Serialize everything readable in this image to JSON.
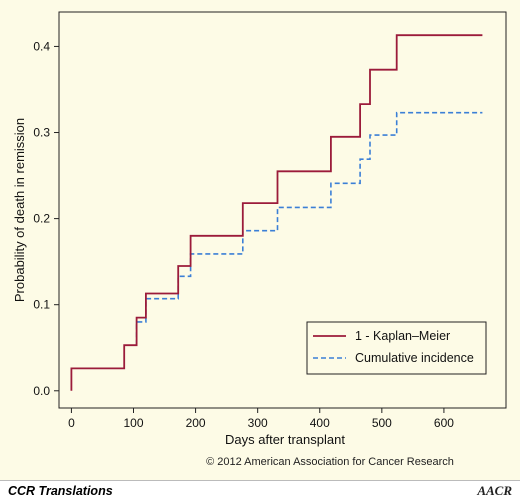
{
  "chart_data": {
    "type": "line",
    "xlabel": "Days after transplant",
    "ylabel": "Probability of death in remission",
    "xlim": [
      -20,
      700
    ],
    "ylim": [
      -0.02,
      0.44
    ],
    "x_ticks": [
      0,
      100,
      200,
      300,
      400,
      500,
      600
    ],
    "y_ticks": [
      0.0,
      0.1,
      0.2,
      0.3,
      0.4
    ],
    "y_tick_labels": [
      "0.0",
      "0.1",
      "0.2",
      "0.3",
      "0.4"
    ],
    "legend_position": "bottom-right",
    "series": [
      {
        "name": "1 - Kaplan–Meier",
        "color": "#9b1b3a",
        "style": "solid",
        "step_points": [
          [
            0,
            0.0
          ],
          [
            0,
            0.026
          ],
          [
            85,
            0.026
          ],
          [
            85,
            0.053
          ],
          [
            105,
            0.053
          ],
          [
            105,
            0.085
          ],
          [
            120,
            0.085
          ],
          [
            120,
            0.113
          ],
          [
            172,
            0.113
          ],
          [
            172,
            0.145
          ],
          [
            192,
            0.145
          ],
          [
            192,
            0.18
          ],
          [
            276,
            0.18
          ],
          [
            276,
            0.218
          ],
          [
            332,
            0.218
          ],
          [
            332,
            0.255
          ],
          [
            418,
            0.255
          ],
          [
            418,
            0.295
          ],
          [
            465,
            0.295
          ],
          [
            465,
            0.333
          ],
          [
            481,
            0.333
          ],
          [
            481,
            0.373
          ],
          [
            524,
            0.373
          ],
          [
            524,
            0.413
          ],
          [
            662,
            0.413
          ]
        ]
      },
      {
        "name": "Cumulative incidence",
        "color": "#3b7fd6",
        "style": "dashed",
        "step_points": [
          [
            105,
            0.053
          ],
          [
            105,
            0.08
          ],
          [
            120,
            0.08
          ],
          [
            120,
            0.107
          ],
          [
            172,
            0.107
          ],
          [
            172,
            0.133
          ],
          [
            192,
            0.133
          ],
          [
            192,
            0.159
          ],
          [
            276,
            0.159
          ],
          [
            276,
            0.186
          ],
          [
            332,
            0.186
          ],
          [
            332,
            0.213
          ],
          [
            418,
            0.213
          ],
          [
            418,
            0.241
          ],
          [
            465,
            0.241
          ],
          [
            465,
            0.269
          ],
          [
            481,
            0.269
          ],
          [
            481,
            0.297
          ],
          [
            524,
            0.297
          ],
          [
            524,
            0.323
          ],
          [
            662,
            0.323
          ]
        ]
      }
    ]
  },
  "copyright": "© 2012 American Association for Cancer Research",
  "footer": {
    "journal": "CCR Translations",
    "logo_text": "AACR"
  }
}
